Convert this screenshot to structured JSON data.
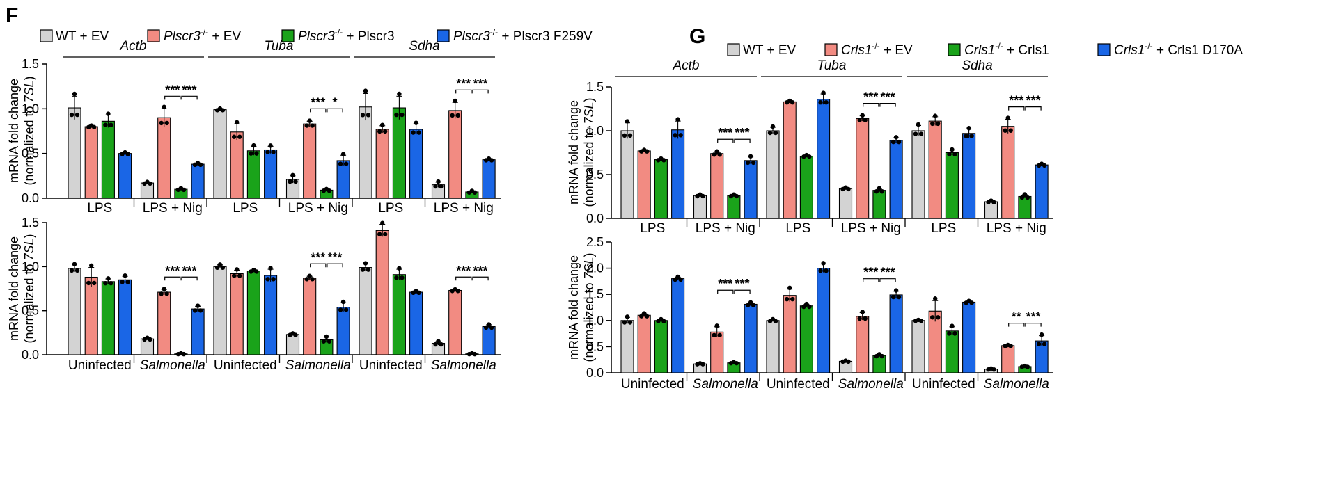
{
  "colors": {
    "wt": "#d3d3d3",
    "ko": "#f28b82",
    "rescue": "#1aa31a",
    "mutant": "#1a66e6"
  },
  "panels": {
    "F": "F",
    "G": "G"
  },
  "legend_f": {
    "wt": {
      "a": "WT + EV",
      "b": ""
    },
    "ko": {
      "a": "Plscr3",
      "sup": "-/-",
      "b": " + EV"
    },
    "rescue": {
      "a": "Plscr3",
      "sup": "-/-",
      "b": " + Plscr3"
    },
    "mutant": {
      "a": "Plscr3",
      "sup": "-/-",
      "b": " + Plscr3 F259V"
    }
  },
  "legend_g": {
    "wt": {
      "a": "WT + EV",
      "b": ""
    },
    "ko": {
      "a": "Crls1",
      "sup": "-/-",
      "b": " + EV"
    },
    "rescue": {
      "a": "Crls1",
      "sup": "-/-",
      "b": " + Crls1"
    },
    "mutant": {
      "a": "Crls1",
      "sup": "-/-",
      "b": " + Crls1 D170A"
    }
  },
  "ylabel": {
    "line1": "mRNA fold change",
    "line2a": "(normalized to ",
    "line2b": "7SL",
    "line2c": ")"
  },
  "chart_data": [
    {
      "id": "F_top",
      "type": "bar",
      "ylim": [
        0,
        1.5
      ],
      "ticks": [
        "0.0",
        "0.5",
        "1.0",
        "1.5"
      ],
      "genes": [
        "Actb",
        "Tuba",
        "Sdha"
      ],
      "categories": [
        "LPS",
        "LPS + Nig",
        "LPS",
        "LPS + Nig",
        "LPS",
        "LPS + Nig"
      ],
      "series": [
        {
          "name": "WT + EV",
          "values": [
            1.01,
            0.17,
            0.99,
            0.21,
            1.02,
            0.15
          ],
          "errors": [
            0.13,
            0.01,
            0.01,
            0.04,
            0.15,
            0.03
          ]
        },
        {
          "name": "Plscr3-/- + EV",
          "values": [
            0.8,
            0.9,
            0.74,
            0.83,
            0.77,
            0.98
          ],
          "errors": [
            0.01,
            0.1,
            0.09,
            0.03,
            0.04,
            0.09
          ]
        },
        {
          "name": "Plscr3-/- + Plscr3",
          "values": [
            0.86,
            0.1,
            0.53,
            0.09,
            1.01,
            0.07
          ],
          "errors": [
            0.07,
            0.01,
            0.05,
            0.01,
            0.13,
            0.01
          ]
        },
        {
          "name": "Plscr3-/- + Plscr3 F259V",
          "values": [
            0.5,
            0.38,
            0.54,
            0.42,
            0.77,
            0.43
          ],
          "errors": [
            0.01,
            0.01,
            0.04,
            0.06,
            0.06,
            0.01
          ]
        }
      ],
      "significance": [
        {
          "group": 1,
          "from": 1,
          "to": 2,
          "label": "***"
        },
        {
          "group": 1,
          "from": 2,
          "to": 3,
          "label": "***"
        },
        {
          "group": 3,
          "from": 1,
          "to": 2,
          "label": "***"
        },
        {
          "group": 3,
          "from": 2,
          "to": 3,
          "label": "*"
        },
        {
          "group": 5,
          "from": 1,
          "to": 2,
          "label": "***"
        },
        {
          "group": 5,
          "from": 2,
          "to": 3,
          "label": "***"
        }
      ]
    },
    {
      "id": "F_bottom",
      "type": "bar",
      "ylim": [
        0,
        1.5
      ],
      "ticks": [
        "0.0",
        "0.5",
        "1.0",
        "1.5"
      ],
      "genes": [],
      "categories": [
        "Uninfected",
        "Salmonella",
        "Uninfected",
        "Salmonella",
        "Uninfected",
        "Salmonella"
      ],
      "series": [
        {
          "name": "WT + EV",
          "values": [
            0.98,
            0.18,
            1.0,
            0.23,
            0.99,
            0.13
          ],
          "errors": [
            0.04,
            0.01,
            0.02,
            0.01,
            0.04,
            0.02
          ]
        },
        {
          "name": "Plscr3-/- + EV",
          "values": [
            0.88,
            0.71,
            0.92,
            0.87,
            1.41,
            0.73
          ],
          "errors": [
            0.11,
            0.03,
            0.04,
            0.02,
            0.07,
            0.01
          ]
        },
        {
          "name": "Plscr3-/- + Plscr3",
          "values": [
            0.83,
            0.01,
            0.95,
            0.17,
            0.91,
            0.01
          ],
          "errors": [
            0.03,
            0.005,
            0.01,
            0.03,
            0.06,
            0.005
          ]
        },
        {
          "name": "Plscr3-/- + Plscr3 F259V",
          "values": [
            0.85,
            0.52,
            0.9,
            0.54,
            0.71,
            0.32
          ],
          "errors": [
            0.04,
            0.03,
            0.07,
            0.05,
            0.01,
            0.02
          ]
        }
      ],
      "significance": [
        {
          "group": 1,
          "from": 1,
          "to": 2,
          "label": "***"
        },
        {
          "group": 1,
          "from": 2,
          "to": 3,
          "label": "***"
        },
        {
          "group": 3,
          "from": 1,
          "to": 2,
          "label": "***"
        },
        {
          "group": 3,
          "from": 2,
          "to": 3,
          "label": "***"
        },
        {
          "group": 5,
          "from": 1,
          "to": 2,
          "label": "***"
        },
        {
          "group": 5,
          "from": 2,
          "to": 3,
          "label": "***"
        }
      ]
    },
    {
      "id": "G_top",
      "type": "bar",
      "ylim": [
        0,
        1.5
      ],
      "ticks": [
        "0.0",
        "0.5",
        "1.0",
        "1.5"
      ],
      "genes": [
        "Actb",
        "Tuba",
        "Sdha"
      ],
      "categories": [
        "LPS",
        "LPS + Nig",
        "LPS",
        "LPS + Nig",
        "LPS",
        "LPS + Nig"
      ],
      "series": [
        {
          "name": "WT + EV",
          "values": [
            1.0,
            0.26,
            1.0,
            0.34,
            1.0,
            0.19
          ],
          "errors": [
            0.09,
            0.01,
            0.04,
            0.01,
            0.06,
            0.01
          ]
        },
        {
          "name": "Crls1-/- + EV",
          "values": [
            0.77,
            0.74,
            1.33,
            1.14,
            1.11,
            1.05
          ],
          "errors": [
            0.01,
            0.02,
            0.01,
            0.03,
            0.05,
            0.08
          ]
        },
        {
          "name": "Crls1-/- + Crls1",
          "values": [
            0.67,
            0.26,
            0.71,
            0.32,
            0.75,
            0.25
          ],
          "errors": [
            0.01,
            0.01,
            0.01,
            0.02,
            0.03,
            0.02
          ]
        },
        {
          "name": "Crls1-/- + Crls1 D170A",
          "values": [
            1.01,
            0.66,
            1.36,
            0.89,
            0.97,
            0.61
          ],
          "errors": [
            0.1,
            0.04,
            0.06,
            0.03,
            0.05,
            0.01
          ]
        }
      ],
      "significance": [
        {
          "group": 1,
          "from": 1,
          "to": 2,
          "label": "***"
        },
        {
          "group": 1,
          "from": 2,
          "to": 3,
          "label": "***"
        },
        {
          "group": 3,
          "from": 1,
          "to": 2,
          "label": "***"
        },
        {
          "group": 3,
          "from": 2,
          "to": 3,
          "label": "***"
        },
        {
          "group": 5,
          "from": 1,
          "to": 2,
          "label": "***"
        },
        {
          "group": 5,
          "from": 2,
          "to": 3,
          "label": "***"
        }
      ]
    },
    {
      "id": "G_bottom",
      "type": "bar",
      "ylim": [
        0,
        2.5
      ],
      "ticks": [
        "0.0",
        "0.5",
        "1.0",
        "1.5",
        "2.0",
        "2.5"
      ],
      "genes": [],
      "categories": [
        "Uninfected",
        "Salmonella",
        "Uninfected",
        "Salmonella",
        "Uninfected",
        "Salmonella"
      ],
      "series": [
        {
          "name": "WT + EV",
          "values": [
            1.0,
            0.17,
            1.0,
            0.22,
            1.0,
            0.07
          ],
          "errors": [
            0.06,
            0.01,
            0.02,
            0.01,
            0.01,
            0.01
          ]
        },
        {
          "name": "Crls1-/- + EV",
          "values": [
            1.1,
            0.78,
            1.48,
            1.08,
            1.18,
            0.52
          ],
          "errors": [
            0.03,
            0.1,
            0.12,
            0.07,
            0.2,
            0.01
          ]
        },
        {
          "name": "Crls1-/- + Crls1",
          "values": [
            1.0,
            0.19,
            1.28,
            0.33,
            0.8,
            0.12
          ],
          "errors": [
            0.02,
            0.01,
            0.03,
            0.02,
            0.08,
            0.01
          ]
        },
        {
          "name": "Crls1-/- + Crls1 D170A",
          "values": [
            1.8,
            1.31,
            2.0,
            1.49,
            1.35,
            0.61
          ],
          "errors": [
            0.03,
            0.03,
            0.08,
            0.07,
            0.02,
            0.1
          ]
        }
      ],
      "significance": [
        {
          "group": 1,
          "from": 1,
          "to": 2,
          "label": "***"
        },
        {
          "group": 1,
          "from": 2,
          "to": 3,
          "label": "***"
        },
        {
          "group": 3,
          "from": 1,
          "to": 2,
          "label": "***"
        },
        {
          "group": 3,
          "from": 2,
          "to": 3,
          "label": "***"
        },
        {
          "group": 5,
          "from": 1,
          "to": 2,
          "label": "**"
        },
        {
          "group": 5,
          "from": 2,
          "to": 3,
          "label": "***"
        }
      ]
    }
  ]
}
